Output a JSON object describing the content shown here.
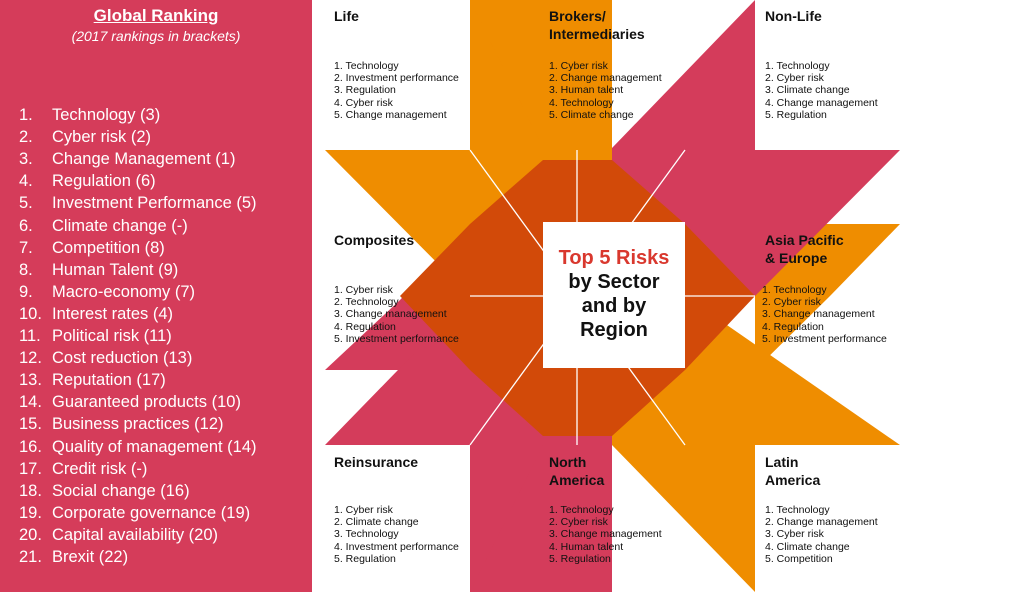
{
  "global": {
    "title": "Global Ranking",
    "subtitle": "(2017 rankings in brackets)",
    "items": [
      {
        "num": "1.",
        "label": "Technology (3)"
      },
      {
        "num": "2.",
        "label": "Cyber risk (2)"
      },
      {
        "num": "3.",
        "label": "Change Management (1)"
      },
      {
        "num": "4.",
        "label": "Regulation (6)"
      },
      {
        "num": "5.",
        "label": "Investment Performance (5)"
      },
      {
        "num": "6.",
        "label": "Climate change (-)"
      },
      {
        "num": "7.",
        "label": "Competition (8)"
      },
      {
        "num": "8.",
        "label": "Human Talent (9)"
      },
      {
        "num": "9.",
        "label": "Macro-economy (7)"
      },
      {
        "num": "10.",
        "label": "Interest rates (4)"
      },
      {
        "num": "11.",
        "label": "Political risk (11)"
      },
      {
        "num": "12.",
        "label": "Cost reduction (13)"
      },
      {
        "num": "13.",
        "label": "Reputation (17)"
      },
      {
        "num": "14.",
        "label": "Guaranteed products (10)"
      },
      {
        "num": "15.",
        "label": "Business practices (12)"
      },
      {
        "num": "16.",
        "label": "Quality of management (14)"
      },
      {
        "num": "17.",
        "label": "Credit risk (-)"
      },
      {
        "num": "18.",
        "label": "Social change (16)"
      },
      {
        "num": "19.",
        "label": "Corporate governance (19)"
      },
      {
        "num": "20.",
        "label": "Capital availability (20)"
      },
      {
        "num": "21.",
        "label": "Brexit (22)"
      }
    ]
  },
  "center": {
    "line1": "Top 5 Risks",
    "line2": "by Sector",
    "line3": "and by",
    "line4": "Region"
  },
  "panels": {
    "life": {
      "title": "Life",
      "items": [
        "1. Technology",
        "2. Investment performance",
        "3. Regulation",
        "4. Cyber risk",
        "5. Change management"
      ]
    },
    "brokers": {
      "title": "Brokers/",
      "title2": "Intermediaries",
      "items": [
        "1. Cyber risk",
        "2. Change management",
        "3. Human talent",
        "4. Technology",
        "5. Climate change"
      ]
    },
    "nonlife": {
      "title": "Non-Life",
      "items": [
        "1. Technology",
        "2. Cyber risk",
        "3. Climate change",
        "4. Change management",
        "5. Regulation"
      ]
    },
    "composites": {
      "title": "Composites",
      "items": [
        "1. Cyber risk",
        "2. Technology",
        "3. Change management",
        "4. Regulation",
        "5. Investment performance"
      ]
    },
    "asia": {
      "title": "Asia Pacific",
      "title2": "& Europe",
      "items": [
        "1. Technology",
        "2. Cyber risk",
        "3. Change management",
        "4. Regulation",
        "5. Investment performance"
      ]
    },
    "reinsurance": {
      "title": "Reinsurance",
      "items": [
        "1. Cyber risk",
        "2. Climate change",
        "3. Technology",
        "4. Investment performance",
        "5. Regulation"
      ]
    },
    "northamerica": {
      "title": "North",
      "title2": "America",
      "items": [
        "1. Technology",
        "2. Cyber risk",
        "3. Change management",
        "4. Human talent",
        "5. Regulation"
      ]
    },
    "latinamerica": {
      "title": "Latin",
      "title2": "America",
      "items": [
        "1. Technology",
        "2. Change management",
        "3. Cyber risk",
        "4. Climate change",
        "5. Competition"
      ]
    }
  },
  "colors": {
    "panel_bg": "#d53c5a",
    "orange": "#ef8d00",
    "crimson": "#d43c5b",
    "dark_orange": "#d24a09",
    "title_red": "#d9382e"
  }
}
